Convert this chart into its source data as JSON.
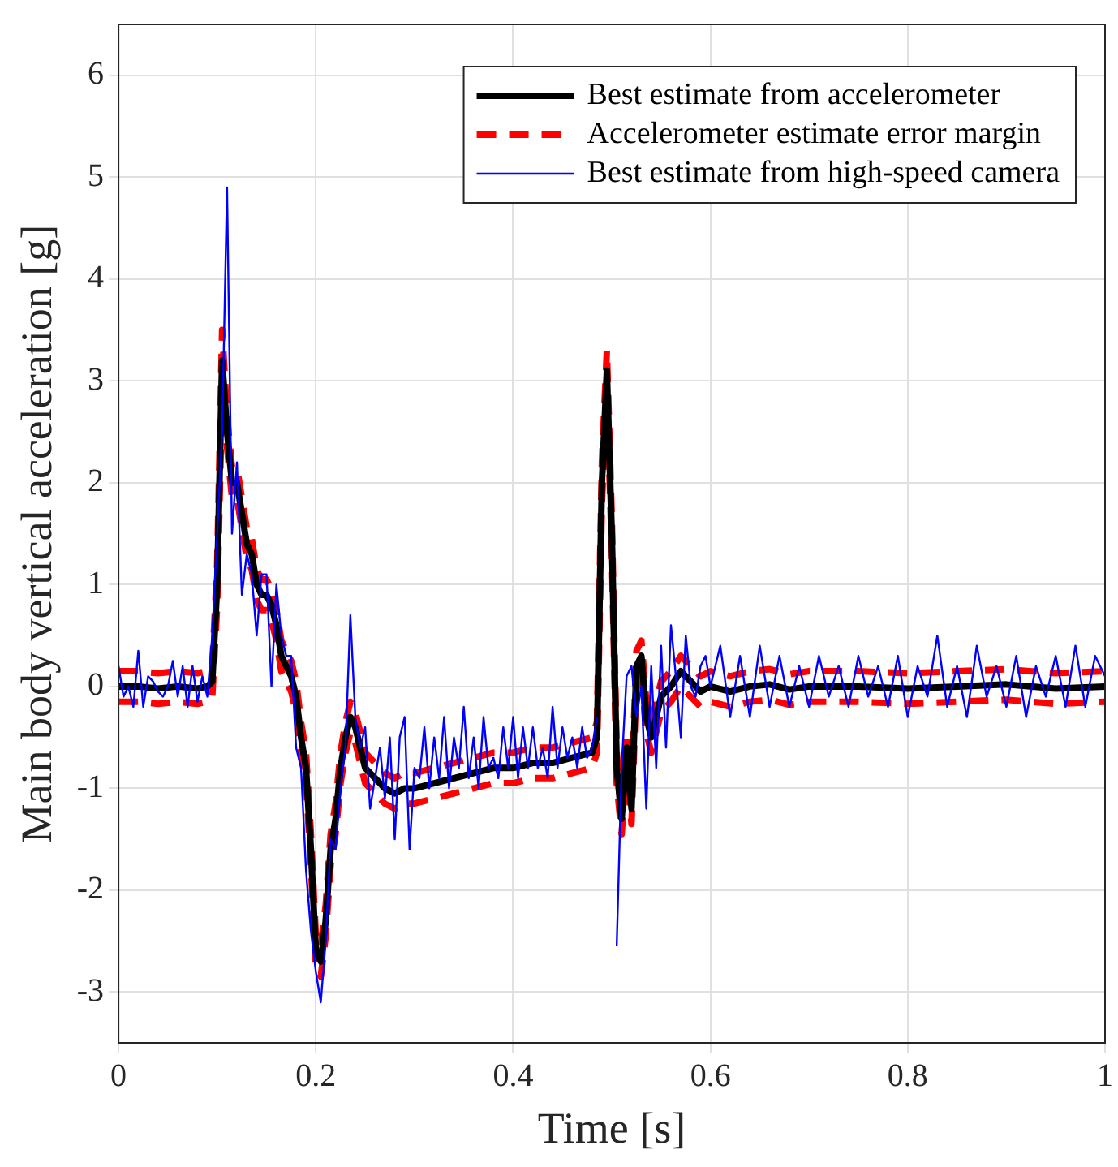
{
  "chart_data": {
    "type": "line",
    "xlabel": "Time [s]",
    "ylabel": "Main body vertical acceleration [g]",
    "xlim": [
      0,
      1
    ],
    "ylim": [
      -3.5,
      6.5
    ],
    "xticks": [
      0,
      {
        "value": 0.2,
        "label": "0.2"
      },
      {
        "value": 0.4,
        "label": "0.4"
      },
      {
        "value": 0.6,
        "label": "0.6"
      },
      {
        "value": 0.8,
        "label": "0.8"
      },
      1
    ],
    "yticks": [
      -3,
      -2,
      -1,
      0,
      1,
      2,
      3,
      4,
      5,
      6
    ],
    "grid": true,
    "legend": "top right",
    "marker": "none",
    "x": [
      0,
      0.02,
      0.04,
      0.06,
      0.08,
      0.09,
      0.095,
      0.1,
      0.105,
      0.11,
      0.115,
      0.12,
      0.125,
      0.13,
      0.135,
      0.14,
      0.145,
      0.15,
      0.155,
      0.16,
      0.165,
      0.17,
      0.175,
      0.18,
      0.185,
      0.19,
      0.195,
      0.2,
      0.205,
      0.21,
      0.215,
      0.22,
      0.225,
      0.23,
      0.235,
      0.24,
      0.245,
      0.25,
      0.26,
      0.27,
      0.28,
      0.29,
      0.3,
      0.32,
      0.34,
      0.36,
      0.38,
      0.4,
      0.42,
      0.44,
      0.46,
      0.48,
      0.485,
      0.49,
      0.495,
      0.5,
      0.505,
      0.51,
      0.515,
      0.52,
      0.525,
      0.53,
      0.535,
      0.54,
      0.545,
      0.55,
      0.56,
      0.57,
      0.58,
      0.59,
      0.6,
      0.62,
      0.64,
      0.66,
      0.68,
      0.7,
      0.75,
      0.8,
      0.85,
      0.9,
      0.95,
      1
    ],
    "series": [
      {
        "name": "Best estimate from accelerometer",
        "color": "#000000",
        "line_style": "solid",
        "values": [
          0,
          0,
          -0.02,
          0,
          -0.02,
          0,
          0.05,
          1.0,
          3.2,
          2.5,
          2.0,
          2.0,
          1.7,
          1.4,
          1.3,
          1.0,
          0.9,
          0.9,
          0.8,
          0.6,
          0.3,
          0.2,
          0.1,
          -0.1,
          -0.5,
          -0.8,
          -1.6,
          -2.6,
          -2.7,
          -2.3,
          -1.6,
          -1.3,
          -0.8,
          -0.5,
          -0.3,
          -0.4,
          -0.6,
          -0.8,
          -0.9,
          -1.0,
          -1.05,
          -1.0,
          -1.0,
          -0.95,
          -0.9,
          -0.85,
          -0.8,
          -0.8,
          -0.75,
          -0.75,
          -0.7,
          -0.65,
          -0.5,
          2.0,
          3.1,
          1.5,
          -0.8,
          -1.3,
          -0.6,
          -1.2,
          0.2,
          0.3,
          -0.3,
          -0.5,
          -0.3,
          -0.1,
          0,
          0.15,
          0.05,
          -0.05,
          0,
          -0.05,
          0,
          0.02,
          -0.03,
          0,
          0,
          -0.02,
          0,
          0.02,
          -0.02,
          0
        ]
      },
      {
        "name": "Accelerometer estimate error margin",
        "color": "#ff0000",
        "line_style": "dashed",
        "values": [
          0.15,
          0.15,
          0.13,
          0.15,
          0.13,
          0.15,
          0.2,
          1.2,
          3.5,
          2.65,
          2.15,
          2.15,
          1.85,
          1.55,
          1.45,
          1.15,
          1.05,
          1.05,
          0.95,
          0.75,
          0.45,
          0.35,
          0.25,
          0.05,
          -0.35,
          -0.65,
          -1.45,
          -2.45,
          -2.55,
          -2.15,
          -1.45,
          -1.15,
          -0.65,
          -0.35,
          -0.15,
          -0.25,
          -0.45,
          -0.65,
          -0.75,
          -0.85,
          -0.9,
          -0.85,
          -0.85,
          -0.8,
          -0.75,
          -0.7,
          -0.65,
          -0.65,
          -0.6,
          -0.6,
          -0.55,
          -0.5,
          -0.35,
          2.2,
          3.3,
          1.65,
          -0.65,
          -1.15,
          -0.45,
          -1.05,
          0.35,
          0.45,
          -0.15,
          -0.35,
          -0.15,
          0.05,
          0.15,
          0.3,
          0.2,
          0.1,
          0.15,
          0.1,
          0.15,
          0.17,
          0.12,
          0.15,
          0.15,
          0.13,
          0.15,
          0.17,
          0.13,
          0.15
        ]
      },
      {
        "color": "#ff0000",
        "line_style": "dashed",
        "values": [
          -0.15,
          -0.15,
          -0.17,
          -0.15,
          -0.17,
          -0.15,
          -0.1,
          0.8,
          2.9,
          2.35,
          1.85,
          1.85,
          1.55,
          1.25,
          1.15,
          0.85,
          0.75,
          0.75,
          0.65,
          0.45,
          0.15,
          0.05,
          -0.05,
          -0.25,
          -0.65,
          -0.95,
          -1.75,
          -2.75,
          -2.85,
          -2.45,
          -1.75,
          -1.45,
          -0.95,
          -0.65,
          -0.45,
          -0.55,
          -0.75,
          -0.95,
          -1.05,
          -1.15,
          -1.2,
          -1.15,
          -1.15,
          -1.1,
          -1.05,
          -1.0,
          -0.95,
          -0.95,
          -0.9,
          -0.9,
          -0.85,
          -0.8,
          -0.65,
          1.8,
          2.9,
          1.35,
          -0.95,
          -1.45,
          -0.75,
          -1.35,
          0.05,
          0.15,
          -0.45,
          -0.65,
          -0.45,
          -0.25,
          -0.15,
          0.0,
          -0.1,
          -0.2,
          -0.15,
          -0.2,
          -0.15,
          -0.13,
          -0.18,
          -0.15,
          -0.15,
          -0.17,
          -0.15,
          -0.13,
          -0.17,
          -0.15
        ]
      },
      {
        "name": "Best estimate from high-speed camera",
        "color": "#0000ff",
        "line_style": "solid",
        "x": [
          0,
          0.005,
          0.01,
          0.015,
          0.02,
          0.025,
          0.03,
          0.035,
          0.04,
          0.045,
          0.05,
          0.055,
          0.06,
          0.065,
          0.07,
          0.075,
          0.08,
          0.085,
          0.09,
          0.095,
          0.1,
          0.105,
          0.11,
          0.115,
          0.12,
          0.125,
          0.13,
          0.135,
          0.14,
          0.145,
          0.15,
          0.155,
          0.16,
          0.165,
          0.17,
          0.175,
          0.18,
          0.185,
          0.19,
          0.195,
          0.2,
          0.205,
          0.21,
          0.215,
          0.22,
          0.225,
          0.23,
          0.235,
          0.24,
          0.245,
          0.25,
          0.255,
          0.26,
          0.265,
          0.27,
          0.275,
          0.28,
          0.285,
          0.29,
          0.295,
          0.3,
          0.305,
          0.31,
          0.315,
          0.32,
          0.325,
          0.33,
          0.335,
          0.34,
          0.345,
          0.35,
          0.355,
          0.36,
          0.365,
          0.37,
          0.375,
          0.38,
          0.385,
          0.39,
          0.395,
          0.4,
          0.405,
          0.41,
          0.415,
          0.42,
          0.425,
          0.43,
          0.435,
          0.44,
          0.445,
          0.45,
          0.455,
          0.46,
          0.465,
          0.47,
          0.475,
          0.48,
          0.485,
          0.49,
          0.495,
          0.5,
          0.505,
          0.51,
          0.515,
          0.52,
          0.525,
          0.53,
          0.535,
          0.54,
          0.545,
          0.55,
          0.555,
          0.56,
          0.565,
          0.57,
          0.575,
          0.58,
          0.585,
          0.59,
          0.595,
          0.6,
          0.61,
          0.62,
          0.63,
          0.64,
          0.65,
          0.66,
          0.67,
          0.68,
          0.69,
          0.7,
          0.71,
          0.72,
          0.73,
          0.74,
          0.75,
          0.76,
          0.77,
          0.78,
          0.79,
          0.8,
          0.81,
          0.82,
          0.83,
          0.84,
          0.85,
          0.86,
          0.87,
          0.88,
          0.89,
          0.9,
          0.91,
          0.92,
          0.93,
          0.94,
          0.95,
          0.96,
          0.97,
          0.98,
          0.99,
          1
        ],
        "values": [
          0.2,
          -0.1,
          0.0,
          -0.2,
          0.35,
          -0.2,
          0.1,
          0.05,
          -0.05,
          -0.1,
          0.0,
          0.25,
          -0.1,
          0.2,
          -0.2,
          0.2,
          -0.15,
          0.1,
          -0.1,
          0.5,
          1.5,
          2.5,
          4.9,
          1.5,
          2.2,
          0.9,
          1.3,
          1.1,
          0.5,
          1.1,
          1.1,
          0.0,
          1.0,
          0.5,
          0.3,
          0.3,
          -0.6,
          -0.8,
          -1.8,
          -2.4,
          -2.8,
          -3.1,
          -2.5,
          -1.5,
          -1.6,
          -1.0,
          -0.6,
          0.7,
          -0.3,
          -0.6,
          -0.4,
          -1.2,
          -0.9,
          -0.6,
          -1.1,
          -0.5,
          -1.5,
          -0.5,
          -0.3,
          -1.6,
          -0.8,
          -0.9,
          -0.4,
          -1.0,
          -0.5,
          -0.9,
          -0.3,
          -1.0,
          -0.5,
          -0.8,
          -0.2,
          -0.9,
          -0.5,
          -1.0,
          -0.3,
          -0.8,
          -0.7,
          -0.9,
          -0.4,
          -0.8,
          -0.3,
          -0.9,
          -0.4,
          -0.8,
          -0.4,
          -0.8,
          -0.6,
          -0.9,
          -0.2,
          -0.8,
          -0.4,
          -0.7,
          -0.5,
          -0.8,
          -0.4,
          -0.7,
          -0.6,
          -0.3,
          null,
          null,
          null,
          -2.55,
          -0.8,
          0.1,
          0.2,
          -0.3,
          0.0,
          -1.2,
          0.2,
          -0.8,
          0.4,
          -0.6,
          0.6,
          0.1,
          -0.5,
          0.5,
          0.0,
          -0.1,
          0.2,
          0.3,
          0.0,
          0.4,
          -0.3,
          0.3,
          -0.3,
          0.4,
          -0.2,
          0.3,
          -0.2,
          0.2,
          -0.2,
          0.3,
          -0.1,
          0.2,
          -0.2,
          0.3,
          -0.1,
          0.2,
          -0.2,
          0.3,
          -0.3,
          0.2,
          -0.1,
          0.5,
          -0.2,
          0.2,
          -0.3,
          0.4,
          -0.1,
          0.2,
          -0.2,
          0.3,
          -0.3,
          0.2,
          -0.1,
          0.3,
          -0.2,
          0.4,
          -0.2,
          0.3,
          0.1
        ]
      }
    ]
  }
}
